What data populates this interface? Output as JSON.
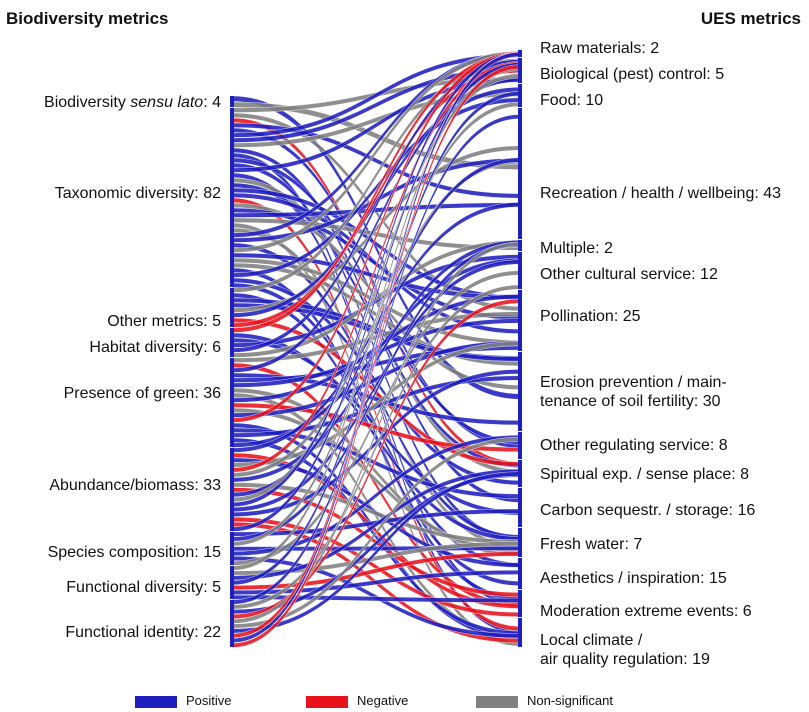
{
  "headers": {
    "left": "Biodiversity metrics",
    "right": "UES metrics"
  },
  "left_nodes": [
    {
      "pre": "Biodiversity ",
      "em": "sensu lato",
      "post": ": 4"
    },
    {
      "pre": "Taxonomic diversity: 82",
      "em": "",
      "post": ""
    },
    {
      "pre": "Other metrics: 5",
      "em": "",
      "post": ""
    },
    {
      "pre": "Habitat diversity: 6",
      "em": "",
      "post": ""
    },
    {
      "pre": "Presence of green: 36",
      "em": "",
      "post": ""
    },
    {
      "pre": "Abundance/biomass: 33",
      "em": "",
      "post": ""
    },
    {
      "pre": "Species composition: 15",
      "em": "",
      "post": ""
    },
    {
      "pre": "Functional diversity: 5",
      "em": "",
      "post": ""
    },
    {
      "pre": "Functional identity: 22",
      "em": "",
      "post": ""
    }
  ],
  "right_nodes": [
    {
      "line1": "Raw materials: 2",
      "line2": ""
    },
    {
      "line1": "Biological (pest) control: 5",
      "line2": ""
    },
    {
      "line1": "Food: 10",
      "line2": ""
    },
    {
      "line1": "Recreation / health / wellbeing: 43",
      "line2": ""
    },
    {
      "line1": "Multiple: 2",
      "line2": ""
    },
    {
      "line1": "Other cultural service: 12",
      "line2": ""
    },
    {
      "line1": "Pollination: 25",
      "line2": ""
    },
    {
      "line1": "Erosion prevention / main-",
      "line2": "tenance of soil fertility: 30"
    },
    {
      "line1": "Other regulating service: 8",
      "line2": ""
    },
    {
      "line1": "Spiritual exp. / sense place: 8",
      "line2": ""
    },
    {
      "line1": "Carbon sequestr. / storage: 16",
      "line2": ""
    },
    {
      "line1": "Fresh water: 7",
      "line2": ""
    },
    {
      "line1": "Aesthetics / inspiration: 15",
      "line2": ""
    },
    {
      "line1": "Moderation extreme events: 6",
      "line2": ""
    },
    {
      "line1": "Local climate /",
      "line2": "air quality regulation: 19"
    }
  ],
  "legend": [
    {
      "label": "Positive",
      "color": "#1f1fbf"
    },
    {
      "label": "Negative",
      "color": "#e8121c"
    },
    {
      "label": "Non-significant",
      "color": "#808080"
    }
  ],
  "colors": {
    "positive": "#1f1fbf",
    "negative": "#e8121c",
    "nonsig": "#808080"
  }
}
